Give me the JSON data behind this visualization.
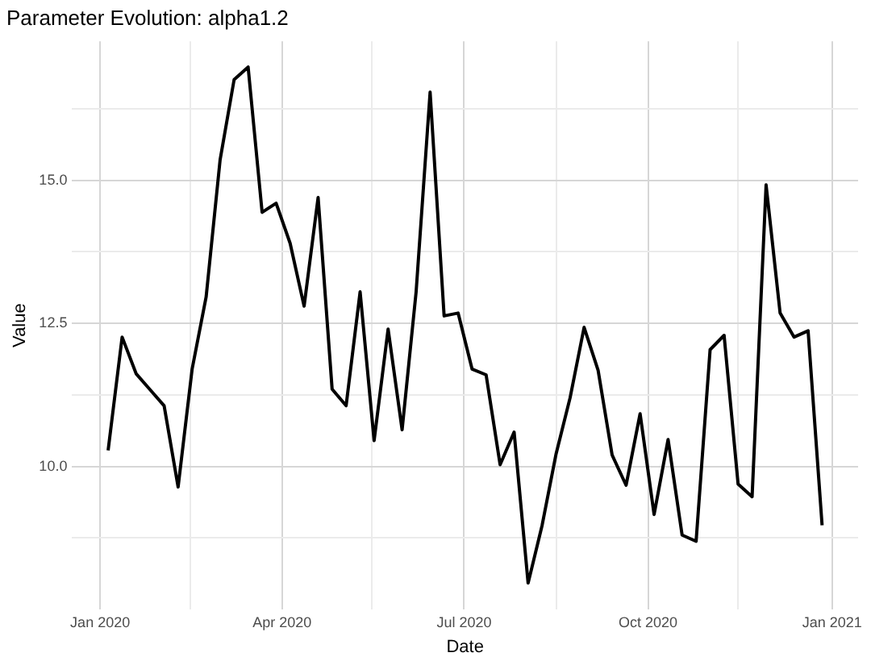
{
  "chart_data": {
    "type": "line",
    "title": "Parameter Evolution: alpha1.2",
    "xlabel": "Date",
    "ylabel": "Value",
    "x": [
      "2020-01-05",
      "2020-01-12",
      "2020-01-19",
      "2020-01-26",
      "2020-02-02",
      "2020-02-09",
      "2020-02-16",
      "2020-02-23",
      "2020-03-01",
      "2020-03-08",
      "2020-03-15",
      "2020-03-22",
      "2020-03-29",
      "2020-04-05",
      "2020-04-12",
      "2020-04-19",
      "2020-04-26",
      "2020-05-03",
      "2020-05-10",
      "2020-05-17",
      "2020-05-24",
      "2020-05-31",
      "2020-06-07",
      "2020-06-14",
      "2020-06-21",
      "2020-06-28",
      "2020-07-05",
      "2020-07-12",
      "2020-07-19",
      "2020-07-26",
      "2020-08-02",
      "2020-08-09",
      "2020-08-16",
      "2020-08-23",
      "2020-08-30",
      "2020-09-06",
      "2020-09-13",
      "2020-09-20",
      "2020-09-27",
      "2020-10-04",
      "2020-10-11",
      "2020-10-18",
      "2020-10-25",
      "2020-11-01",
      "2020-11-08",
      "2020-11-15",
      "2020-11-22",
      "2020-11-29",
      "2020-12-06",
      "2020-12-13",
      "2020-12-20",
      "2020-12-27"
    ],
    "series": [
      {
        "color": "#000000",
        "values": [
          10.28,
          12.26,
          11.62,
          11.34,
          11.06,
          9.64,
          11.7,
          12.96,
          15.36,
          16.76,
          16.98,
          14.44,
          14.6,
          13.9,
          12.8,
          14.7,
          11.35,
          11.06,
          13.05,
          10.45,
          12.4,
          10.64,
          13.05,
          16.54,
          12.63,
          12.68,
          11.7,
          11.6,
          10.03,
          10.6,
          7.96,
          8.97,
          10.22,
          11.2,
          12.43,
          11.68,
          10.2,
          9.67,
          10.92,
          9.16,
          10.47,
          8.8,
          8.69,
          12.04,
          12.29,
          9.69,
          9.47,
          14.92,
          12.68,
          12.26,
          12.37,
          8.97
        ]
      }
    ],
    "xlim": [
      "2019-12-18",
      "2021-01-14"
    ],
    "xticks": [
      {
        "value": "2020-01-01",
        "label": "Jan 2020"
      },
      {
        "value": "2020-02-15",
        "label": null
      },
      {
        "value": "2020-04-01",
        "label": "Apr 2020"
      },
      {
        "value": "2020-05-16",
        "label": null
      },
      {
        "value": "2020-07-01",
        "label": "Jul 2020"
      },
      {
        "value": "2020-08-16",
        "label": null
      },
      {
        "value": "2020-10-01",
        "label": "Oct 2020"
      },
      {
        "value": "2020-11-15",
        "label": null
      },
      {
        "value": "2021-01-01",
        "label": "Jan 2021"
      }
    ],
    "ylim": [
      7.5,
      17.43
    ],
    "yticks": [
      {
        "value": 8.75,
        "label": null
      },
      {
        "value": 10,
        "label": "10.0"
      },
      {
        "value": 11.25,
        "label": null
      },
      {
        "value": 12.5,
        "label": "12.5"
      },
      {
        "value": 13.75,
        "label": null
      },
      {
        "value": 15,
        "label": "15.0"
      },
      {
        "value": 16.25,
        "label": null
      }
    ],
    "grid": true,
    "legend": false,
    "marker": "none",
    "line_style": "solid"
  }
}
